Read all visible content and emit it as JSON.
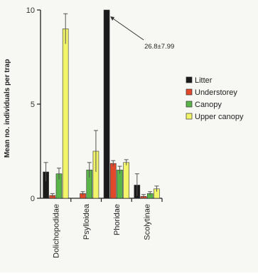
{
  "chart_data": {
    "type": "bar",
    "ylabel": "Mean no. individuals per trap",
    "xlabel": "",
    "ylim": [
      0,
      10
    ],
    "yticks": [
      0,
      5,
      10
    ],
    "categories": [
      "Dolichopodidae",
      "Psylloidea",
      "Phoridae",
      "Scolytinae"
    ],
    "series": [
      {
        "name": "Litter",
        "color": "#1a1a1a",
        "values": [
          1.4,
          0.0,
          10.0,
          0.7
        ],
        "errors": [
          0.5,
          0.0,
          0.0,
          0.6
        ]
      },
      {
        "name": "Understorey",
        "color": "#e2492a",
        "values": [
          0.15,
          0.25,
          1.85,
          0.1
        ],
        "errors": [
          0.1,
          0.1,
          0.15,
          0.1
        ]
      },
      {
        "name": "Canopy",
        "color": "#59b548",
        "values": [
          1.3,
          1.5,
          1.5,
          0.25
        ],
        "errors": [
          0.3,
          0.4,
          0.2,
          0.1
        ]
      },
      {
        "name": "Upper canopy",
        "color": "#f2f56a",
        "values": [
          9.0,
          2.5,
          1.9,
          0.5
        ],
        "errors": [
          0.8,
          1.1,
          0.15,
          0.15
        ]
      }
    ],
    "legend": {
      "position": "right"
    },
    "grid": false,
    "annotations": [
      {
        "text": "26.8±7.99",
        "category": "Phoridae",
        "series": "Litter",
        "note": "bar truncated at axis maximum"
      }
    ]
  }
}
